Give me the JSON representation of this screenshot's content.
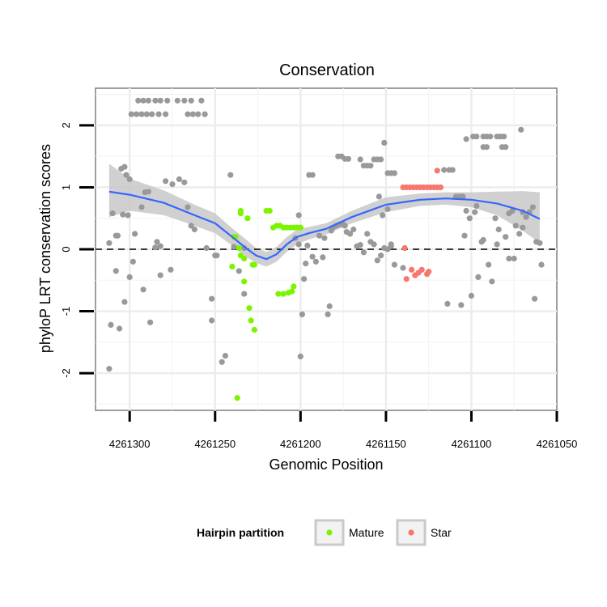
{
  "chart_data": {
    "type": "scatter",
    "title": "Conservation",
    "xlabel": "Genomic Position",
    "ylabel": "phyloP LRT conservation scores",
    "xlim": [
      4261320,
      4261050
    ],
    "ylim": [
      -2.6,
      2.6
    ],
    "x_reversed": true,
    "x_ticks": [
      4261300,
      4261250,
      4261200,
      4261150,
      4261100,
      4261050
    ],
    "x_tick_labels": [
      "4261300",
      "4261250",
      "4261200",
      "4261150",
      "4261100",
      "4261050"
    ],
    "y_ticks": [
      -2,
      -1,
      0,
      1,
      2
    ],
    "y_tick_labels": [
      "-2",
      "-1",
      "0",
      "1",
      "2"
    ],
    "reference_line": {
      "y": 0,
      "style": "dashed"
    },
    "grid": true,
    "legend": {
      "title": "Hairpin partition",
      "position": "bottom",
      "entries": [
        {
          "label": "Mature",
          "color": "#7cf400"
        },
        {
          "label": "Star",
          "color": "#f8766d"
        }
      ]
    },
    "colors": {
      "other": "#999999",
      "mature": "#7cf400",
      "star": "#f8766d",
      "smooth": "#3366ff",
      "ribbon": "#c8c8c8"
    },
    "series": [
      {
        "name": "Other",
        "points": [
          [
            4261295,
            2.4
          ],
          [
            4261292,
            2.4
          ],
          [
            4261289,
            2.4
          ],
          [
            4261285,
            2.4
          ],
          [
            4261282,
            2.4
          ],
          [
            4261278,
            2.4
          ],
          [
            4261272,
            2.4
          ],
          [
            4261268,
            2.4
          ],
          [
            4261264,
            2.4
          ],
          [
            4261258,
            2.4
          ],
          [
            4261299,
            2.18
          ],
          [
            4261296,
            2.18
          ],
          [
            4261293,
            2.18
          ],
          [
            4261290,
            2.18
          ],
          [
            4261287,
            2.18
          ],
          [
            4261283,
            2.18
          ],
          [
            4261279,
            2.18
          ],
          [
            4261266,
            2.18
          ],
          [
            4261263,
            2.18
          ],
          [
            4261260,
            2.18
          ],
          [
            4261256,
            2.18
          ],
          [
            4261310,
            0.58
          ],
          [
            4261308,
            0.22
          ],
          [
            4261307,
            0.22
          ],
          [
            4261305,
            1.3
          ],
          [
            4261303,
            1.33
          ],
          [
            4261304,
            0.56
          ],
          [
            4261301,
            0.55
          ],
          [
            4261302,
            1.2
          ],
          [
            4261300,
            1.13
          ],
          [
            4261297,
            0.25
          ],
          [
            4261293,
            0.68
          ],
          [
            4261291,
            0.92
          ],
          [
            4261289,
            0.93
          ],
          [
            4261285,
            0.03
          ],
          [
            4261282,
            0.05
          ],
          [
            4261279,
            1.1
          ],
          [
            4261275,
            1.05
          ],
          [
            4261271,
            1.13
          ],
          [
            4261268,
            1.08
          ],
          [
            4261266,
            0.68
          ],
          [
            4261312,
            0.1
          ],
          [
            4261311,
            -1.22
          ],
          [
            4261308,
            -0.35
          ],
          [
            4261306,
            -1.28
          ],
          [
            4261303,
            -0.85
          ],
          [
            4261300,
            -0.45
          ],
          [
            4261298,
            -0.2
          ],
          [
            4261292,
            -0.65
          ],
          [
            4261288,
            -1.18
          ],
          [
            4261284,
            0.12
          ],
          [
            4261282,
            -0.42
          ],
          [
            4261276,
            -0.33
          ],
          [
            4261312,
            -1.93
          ],
          [
            4261264,
            0.38
          ],
          [
            4261262,
            0.32
          ],
          [
            4261255,
            0.02
          ],
          [
            4261252,
            -0.8
          ],
          [
            4261252,
            -1.15
          ],
          [
            4261250,
            -0.1
          ],
          [
            4261249,
            -0.1
          ],
          [
            4261246,
            -1.82
          ],
          [
            4261244,
            -1.72
          ],
          [
            4261241,
            1.2
          ],
          [
            4261239,
            0.04
          ],
          [
            4261236,
            -0.35
          ],
          [
            4261233,
            0.02
          ],
          [
            4261233,
            -0.72
          ],
          [
            4261203,
            0.18
          ],
          [
            4261201,
            0.08
          ],
          [
            4261201,
            0.55
          ],
          [
            4261200,
            -1.73
          ],
          [
            4261199,
            -1.05
          ],
          [
            4261198,
            -0.48
          ],
          [
            4261197,
            -0.23
          ],
          [
            4261196,
            0.06
          ],
          [
            4261195,
            1.2
          ],
          [
            4261193,
            1.2
          ],
          [
            4261193,
            -0.12
          ],
          [
            4261191,
            -0.2
          ],
          [
            4261189,
            0.22
          ],
          [
            4261187,
            -0.13
          ],
          [
            4261186,
            0.18
          ],
          [
            4261184,
            -1.05
          ],
          [
            4261183,
            -0.92
          ],
          [
            4261182,
            0.3
          ],
          [
            4261181,
            0.35
          ],
          [
            4261179,
            0.38
          ],
          [
            4261177,
            0.4
          ],
          [
            4261175,
            0.4
          ],
          [
            4261174,
            0.38
          ],
          [
            4261173,
            0.28
          ],
          [
            4261171,
            0.25
          ],
          [
            4261169,
            0.32
          ],
          [
            4261167,
            0.05
          ],
          [
            4261165,
            0.07
          ],
          [
            4261163,
            -0.05
          ],
          [
            4261161,
            0.25
          ],
          [
            4261159,
            0.12
          ],
          [
            4261157,
            0.08
          ],
          [
            4261155,
            -0.18
          ],
          [
            4261153,
            -0.1
          ],
          [
            4261151,
            0.02
          ],
          [
            4261149,
            0.0
          ],
          [
            4261147,
            0.08
          ],
          [
            4261145,
            -0.25
          ],
          [
            4261178,
            1.5
          ],
          [
            4261176,
            1.5
          ],
          [
            4261174,
            1.46
          ],
          [
            4261172,
            1.46
          ],
          [
            4261165,
            1.45
          ],
          [
            4261163,
            1.35
          ],
          [
            4261161,
            1.35
          ],
          [
            4261159,
            1.35
          ],
          [
            4261157,
            1.45
          ],
          [
            4261155,
            1.45
          ],
          [
            4261153,
            1.45
          ],
          [
            4261151,
            1.72
          ],
          [
            4261149,
            1.23
          ],
          [
            4261147,
            1.23
          ],
          [
            4261145,
            1.23
          ],
          [
            4261149,
            0.65
          ],
          [
            4261154,
            0.85
          ],
          [
            4261152,
            0.55
          ],
          [
            4261147,
            0.05
          ],
          [
            4261140,
            -0.3
          ],
          [
            4261116,
            1.28
          ],
          [
            4261113,
            1.28
          ],
          [
            4261111,
            1.28
          ],
          [
            4261109,
            0.85
          ],
          [
            4261107,
            0.85
          ],
          [
            4261105,
            0.85
          ],
          [
            4261103,
            0.62
          ],
          [
            4261101,
            0.5
          ],
          [
            4261104,
            0.22
          ],
          [
            4261103,
            1.78
          ],
          [
            4261099,
            1.82
          ],
          [
            4261097,
            1.82
          ],
          [
            4261093,
            1.82
          ],
          [
            4261091,
            1.82
          ],
          [
            4261089,
            1.82
          ],
          [
            4261085,
            1.82
          ],
          [
            4261083,
            1.82
          ],
          [
            4261081,
            1.82
          ],
          [
            4261093,
            1.65
          ],
          [
            4261091,
            1.65
          ],
          [
            4261082,
            1.65
          ],
          [
            4261080,
            1.65
          ],
          [
            4261071,
            1.93
          ],
          [
            4261098,
            0.6
          ],
          [
            4261097,
            0.7
          ],
          [
            4261094,
            0.12
          ],
          [
            4261093,
            0.15
          ],
          [
            4261086,
            0.5
          ],
          [
            4261084,
            0.32
          ],
          [
            4261080,
            0.2
          ],
          [
            4261078,
            0.58
          ],
          [
            4261076,
            0.62
          ],
          [
            4261074,
            0.38
          ],
          [
            4261072,
            0.25
          ],
          [
            4261070,
            0.35
          ],
          [
            4261068,
            0.52
          ],
          [
            4261066,
            0.6
          ],
          [
            4261064,
            0.68
          ],
          [
            4261062,
            0.12
          ],
          [
            4261060,
            0.1
          ],
          [
            4261059,
            -0.25
          ],
          [
            4261063,
            -0.8
          ],
          [
            4261070,
            0.6
          ],
          [
            4261075,
            -0.15
          ],
          [
            4261078,
            -0.15
          ],
          [
            4261090,
            -0.25
          ],
          [
            4261096,
            -0.45
          ],
          [
            4261100,
            -0.75
          ],
          [
            4261106,
            -0.9
          ],
          [
            4261114,
            -0.88
          ],
          [
            4261085,
            0.08
          ],
          [
            4261088,
            -0.52
          ]
        ]
      },
      {
        "name": "Mature",
        "points": [
          [
            4261235,
            0.58
          ],
          [
            4261235,
            0.62
          ],
          [
            4261231,
            0.5
          ],
          [
            4261220,
            0.62
          ],
          [
            4261218,
            0.62
          ],
          [
            4261239,
            0.2
          ],
          [
            4261238,
            0.2
          ],
          [
            4261236,
            0.02
          ],
          [
            4261235,
            -0.1
          ],
          [
            4261240,
            -0.28
          ],
          [
            4261233,
            -0.52
          ],
          [
            4261230,
            -0.95
          ],
          [
            4261229,
            -1.15
          ],
          [
            4261227,
            -1.3
          ],
          [
            4261228,
            -0.25
          ],
          [
            4261227,
            -0.25
          ],
          [
            4261237,
            -2.4
          ],
          [
            4261233,
            -0.15
          ],
          [
            4261216,
            0.35
          ],
          [
            4261214,
            0.38
          ],
          [
            4261212,
            0.38
          ],
          [
            4261210,
            0.35
          ],
          [
            4261208,
            0.35
          ],
          [
            4261206,
            0.35
          ],
          [
            4261204,
            0.35
          ],
          [
            4261202,
            0.35
          ],
          [
            4261200,
            0.35
          ],
          [
            4261213,
            -0.72
          ],
          [
            4261210,
            -0.72
          ],
          [
            4261207,
            -0.7
          ],
          [
            4261205,
            -0.68
          ],
          [
            4261204,
            -0.6
          ]
        ]
      },
      {
        "name": "Star",
        "points": [
          [
            4261140,
            1.0
          ],
          [
            4261138,
            1.0
          ],
          [
            4261136,
            1.0
          ],
          [
            4261134,
            1.0
          ],
          [
            4261132,
            1.0
          ],
          [
            4261130,
            1.0
          ],
          [
            4261128,
            1.0
          ],
          [
            4261126,
            1.0
          ],
          [
            4261124,
            1.0
          ],
          [
            4261122,
            1.0
          ],
          [
            4261120,
            1.0
          ],
          [
            4261118,
            1.0
          ],
          [
            4261120,
            1.27
          ],
          [
            4261139,
            0.02
          ],
          [
            4261138,
            -0.48
          ],
          [
            4261135,
            -0.33
          ],
          [
            4261133,
            -0.42
          ],
          [
            4261131,
            -0.38
          ],
          [
            4261129,
            -0.33
          ],
          [
            4261126,
            -0.4
          ],
          [
            4261125,
            -0.36
          ]
        ]
      }
    ],
    "smooth_line": {
      "x": [
        4261312,
        4261300,
        4261280,
        4261262,
        4261250,
        4261240,
        4261232,
        4261226,
        4261220,
        4261214,
        4261208,
        4261202,
        4261195,
        4261185,
        4261170,
        4261150,
        4261130,
        4261115,
        4261100,
        4261085,
        4261070,
        4261060
      ],
      "y": [
        0.93,
        0.88,
        0.75,
        0.55,
        0.42,
        0.2,
        0.02,
        -0.1,
        -0.16,
        -0.08,
        0.08,
        0.2,
        0.26,
        0.33,
        0.52,
        0.72,
        0.8,
        0.82,
        0.8,
        0.74,
        0.62,
        0.49
      ],
      "ci_low": [
        0.52,
        0.62,
        0.55,
        0.38,
        0.26,
        0.06,
        -0.12,
        -0.22,
        -0.28,
        -0.2,
        -0.04,
        0.08,
        0.16,
        0.24,
        0.42,
        0.6,
        0.7,
        0.72,
        0.68,
        0.55,
        0.3,
        0.1
      ],
      "ci_high": [
        1.38,
        1.14,
        0.95,
        0.72,
        0.58,
        0.34,
        0.16,
        0.02,
        -0.04,
        0.04,
        0.2,
        0.32,
        0.36,
        0.42,
        0.62,
        0.84,
        0.9,
        0.92,
        0.92,
        0.93,
        0.94,
        0.92
      ]
    }
  }
}
